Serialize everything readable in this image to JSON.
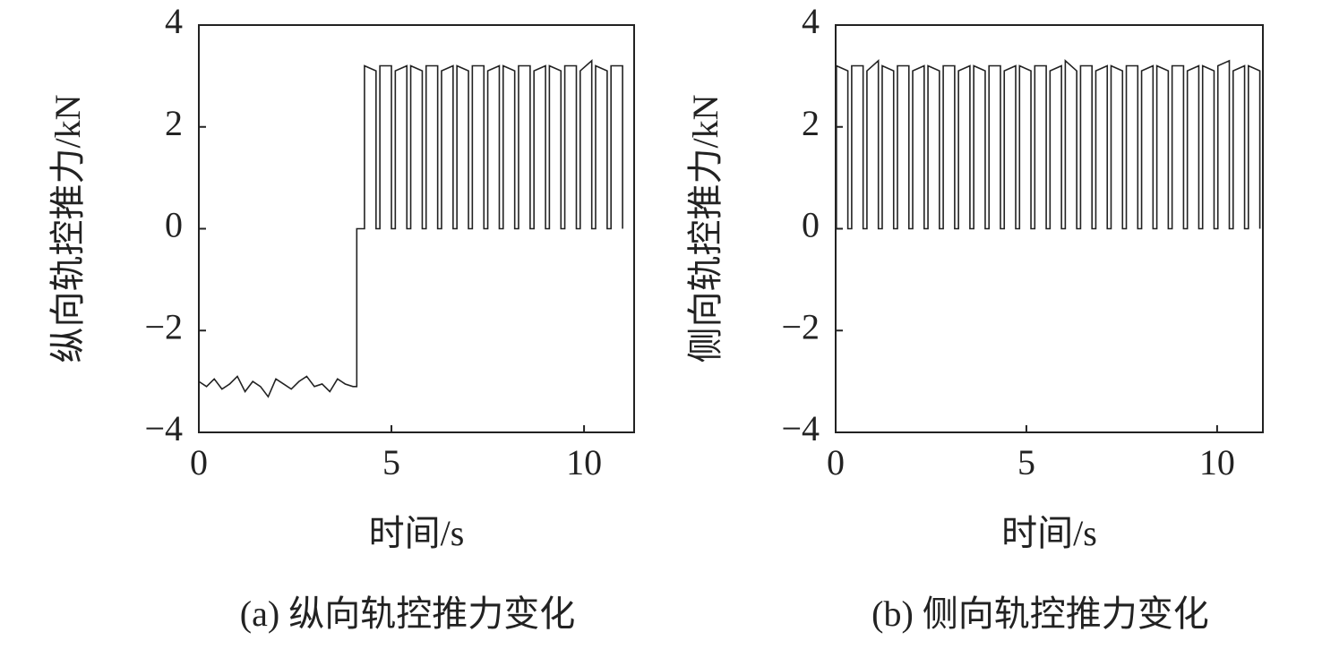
{
  "chart_data": [
    {
      "type": "line",
      "title": "(a) 纵向轨控推力变化",
      "xlabel": "时间/s",
      "ylabel": "纵向轨控推力/kN",
      "color": "#222222",
      "xlim": [
        0,
        11.3
      ],
      "xticks": [
        0,
        5,
        10
      ],
      "ylim": [
        -4,
        4
      ],
      "yticks": [
        {
          "value": -4,
          "label": "−4"
        },
        {
          "value": -2,
          "label": "−2"
        },
        0,
        2,
        4
      ],
      "x": [
        0,
        0.2,
        0.4,
        0.6,
        0.8,
        1.0,
        1.2,
        1.4,
        1.6,
        1.8,
        2.0,
        2.2,
        2.4,
        2.6,
        2.8,
        3.0,
        3.2,
        3.4,
        3.6,
        3.8,
        4.0,
        4.1,
        4.1,
        4.3,
        4.3,
        4.6,
        4.6,
        4.7,
        4.7,
        5.0,
        5.0,
        5.1,
        5.1,
        5.4,
        5.4,
        5.5,
        5.5,
        5.8,
        5.8,
        5.9,
        5.9,
        6.2,
        6.2,
        6.3,
        6.3,
        6.6,
        6.6,
        6.7,
        6.7,
        7.0,
        7.0,
        7.1,
        7.1,
        7.4,
        7.4,
        7.5,
        7.5,
        7.8,
        7.8,
        7.9,
        7.9,
        8.2,
        8.2,
        8.3,
        8.3,
        8.6,
        8.6,
        8.7,
        8.7,
        9.0,
        9.0,
        9.1,
        9.1,
        9.4,
        9.4,
        9.5,
        9.5,
        9.8,
        9.8,
        9.9,
        9.9,
        10.2,
        10.2,
        10.3,
        10.3,
        10.6,
        10.6,
        10.7,
        10.7,
        11.0,
        11.0
      ],
      "values": [
        -3.0,
        -3.1,
        -2.95,
        -3.15,
        -3.05,
        -2.9,
        -3.2,
        -3.0,
        -3.1,
        -3.3,
        -2.95,
        -3.05,
        -3.15,
        -3.0,
        -2.9,
        -3.1,
        -3.05,
        -3.2,
        -2.95,
        -3.05,
        -3.1,
        -3.1,
        0,
        0,
        3.2,
        3.1,
        0,
        0,
        3.2,
        3.2,
        0,
        0,
        3.1,
        3.2,
        0,
        0,
        3.2,
        3.1,
        0,
        0,
        3.2,
        3.2,
        0,
        0,
        3.1,
        3.2,
        0,
        0,
        3.2,
        3.1,
        0,
        0,
        3.2,
        3.2,
        0,
        0,
        3.1,
        3.2,
        0,
        0,
        3.2,
        3.1,
        0,
        0,
        3.2,
        3.2,
        0,
        0,
        3.1,
        3.2,
        0,
        0,
        3.2,
        3.1,
        0,
        0,
        3.2,
        3.2,
        0,
        0,
        3.1,
        3.3,
        0,
        0,
        3.2,
        3.1,
        0,
        0,
        3.2,
        3.2,
        0
      ]
    },
    {
      "type": "line",
      "title": "(b) 侧向轨控推力变化",
      "xlabel": "时间/s",
      "ylabel": "侧向轨控推力/kN",
      "color": "#222222",
      "xlim": [
        0,
        11.2
      ],
      "xticks": [
        0,
        5,
        10
      ],
      "ylim": [
        -4,
        4
      ],
      "yticks": [
        {
          "value": -4,
          "label": "−4"
        },
        {
          "value": -2,
          "label": "−2"
        },
        0,
        2,
        4
      ],
      "x": [
        0.02,
        0.02,
        0.32,
        0.32,
        0.42,
        0.42,
        0.72,
        0.72,
        0.82,
        0.82,
        1.12,
        1.12,
        1.22,
        1.22,
        1.52,
        1.52,
        1.62,
        1.62,
        1.92,
        1.92,
        2.02,
        2.02,
        2.32,
        2.32,
        2.42,
        2.42,
        2.72,
        2.72,
        2.82,
        2.82,
        3.12,
        3.12,
        3.22,
        3.22,
        3.52,
        3.52,
        3.62,
        3.62,
        3.92,
        3.92,
        4.02,
        4.02,
        4.32,
        4.32,
        4.42,
        4.42,
        4.72,
        4.72,
        4.82,
        4.82,
        5.12,
        5.12,
        5.22,
        5.22,
        5.52,
        5.52,
        5.62,
        5.62,
        5.92,
        5.92,
        6.02,
        6.02,
        6.32,
        6.32,
        6.42,
        6.42,
        6.72,
        6.72,
        6.82,
        6.82,
        7.12,
        7.12,
        7.22,
        7.22,
        7.52,
        7.52,
        7.62,
        7.62,
        7.92,
        7.92,
        8.02,
        8.02,
        8.32,
        8.32,
        8.42,
        8.42,
        8.72,
        8.72,
        8.82,
        8.82,
        9.12,
        9.12,
        9.22,
        9.22,
        9.52,
        9.52,
        9.62,
        9.62,
        9.92,
        9.92,
        10.02,
        10.02,
        10.32,
        10.32,
        10.42,
        10.42,
        10.72,
        10.72,
        10.82,
        10.82,
        11.12,
        11.12
      ],
      "values": [
        0,
        3.2,
        3.1,
        0,
        0,
        3.2,
        3.2,
        0,
        0,
        3.1,
        3.3,
        0,
        0,
        3.2,
        3.1,
        0,
        0,
        3.2,
        3.2,
        0,
        0,
        3.1,
        3.2,
        0,
        0,
        3.2,
        3.1,
        0,
        0,
        3.2,
        3.2,
        0,
        0,
        3.1,
        3.2,
        0,
        0,
        3.2,
        3.1,
        0,
        0,
        3.2,
        3.2,
        0,
        0,
        3.1,
        3.2,
        0,
        0,
        3.2,
        3.1,
        0,
        0,
        3.2,
        3.2,
        0,
        0,
        3.1,
        3.2,
        0,
        0,
        3.3,
        3.1,
        0,
        0,
        3.2,
        3.2,
        0,
        0,
        3.1,
        3.2,
        0,
        0,
        3.2,
        3.1,
        0,
        0,
        3.2,
        3.2,
        0,
        0,
        3.1,
        3.2,
        0,
        0,
        3.2,
        3.1,
        0,
        0,
        3.2,
        3.2,
        0,
        0,
        3.1,
        3.2,
        0,
        0,
        3.2,
        3.1,
        0,
        0,
        3.2,
        3.3,
        0,
        0,
        3.1,
        3.2,
        0,
        0,
        3.2,
        3.1,
        0
      ]
    }
  ]
}
